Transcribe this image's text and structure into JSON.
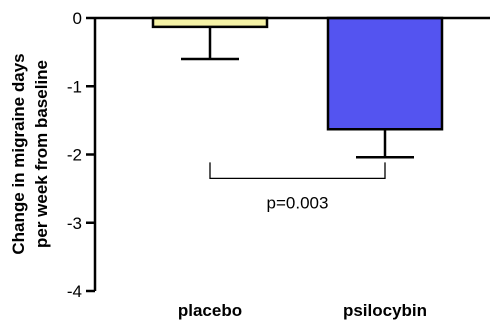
{
  "chart_data": {
    "type": "bar",
    "title": "",
    "xlabel": "",
    "ylabel_lines": [
      "Change in migraine days",
      "per week from baseline"
    ],
    "categories": [
      "placebo",
      "psilocybin"
    ],
    "values": [
      -0.13,
      -1.63
    ],
    "error_bars": [
      0.47,
      0.41
    ],
    "colors": [
      "#f5f2a6",
      "#5454f0"
    ],
    "ylim": [
      -4,
      0
    ],
    "yticks": [
      0,
      -1,
      -2,
      -3,
      -4
    ],
    "grid": false,
    "annotation": {
      "text": "p=0.003",
      "between": [
        "placebo",
        "psilocybin"
      ],
      "bracket_y": -2.35
    }
  }
}
